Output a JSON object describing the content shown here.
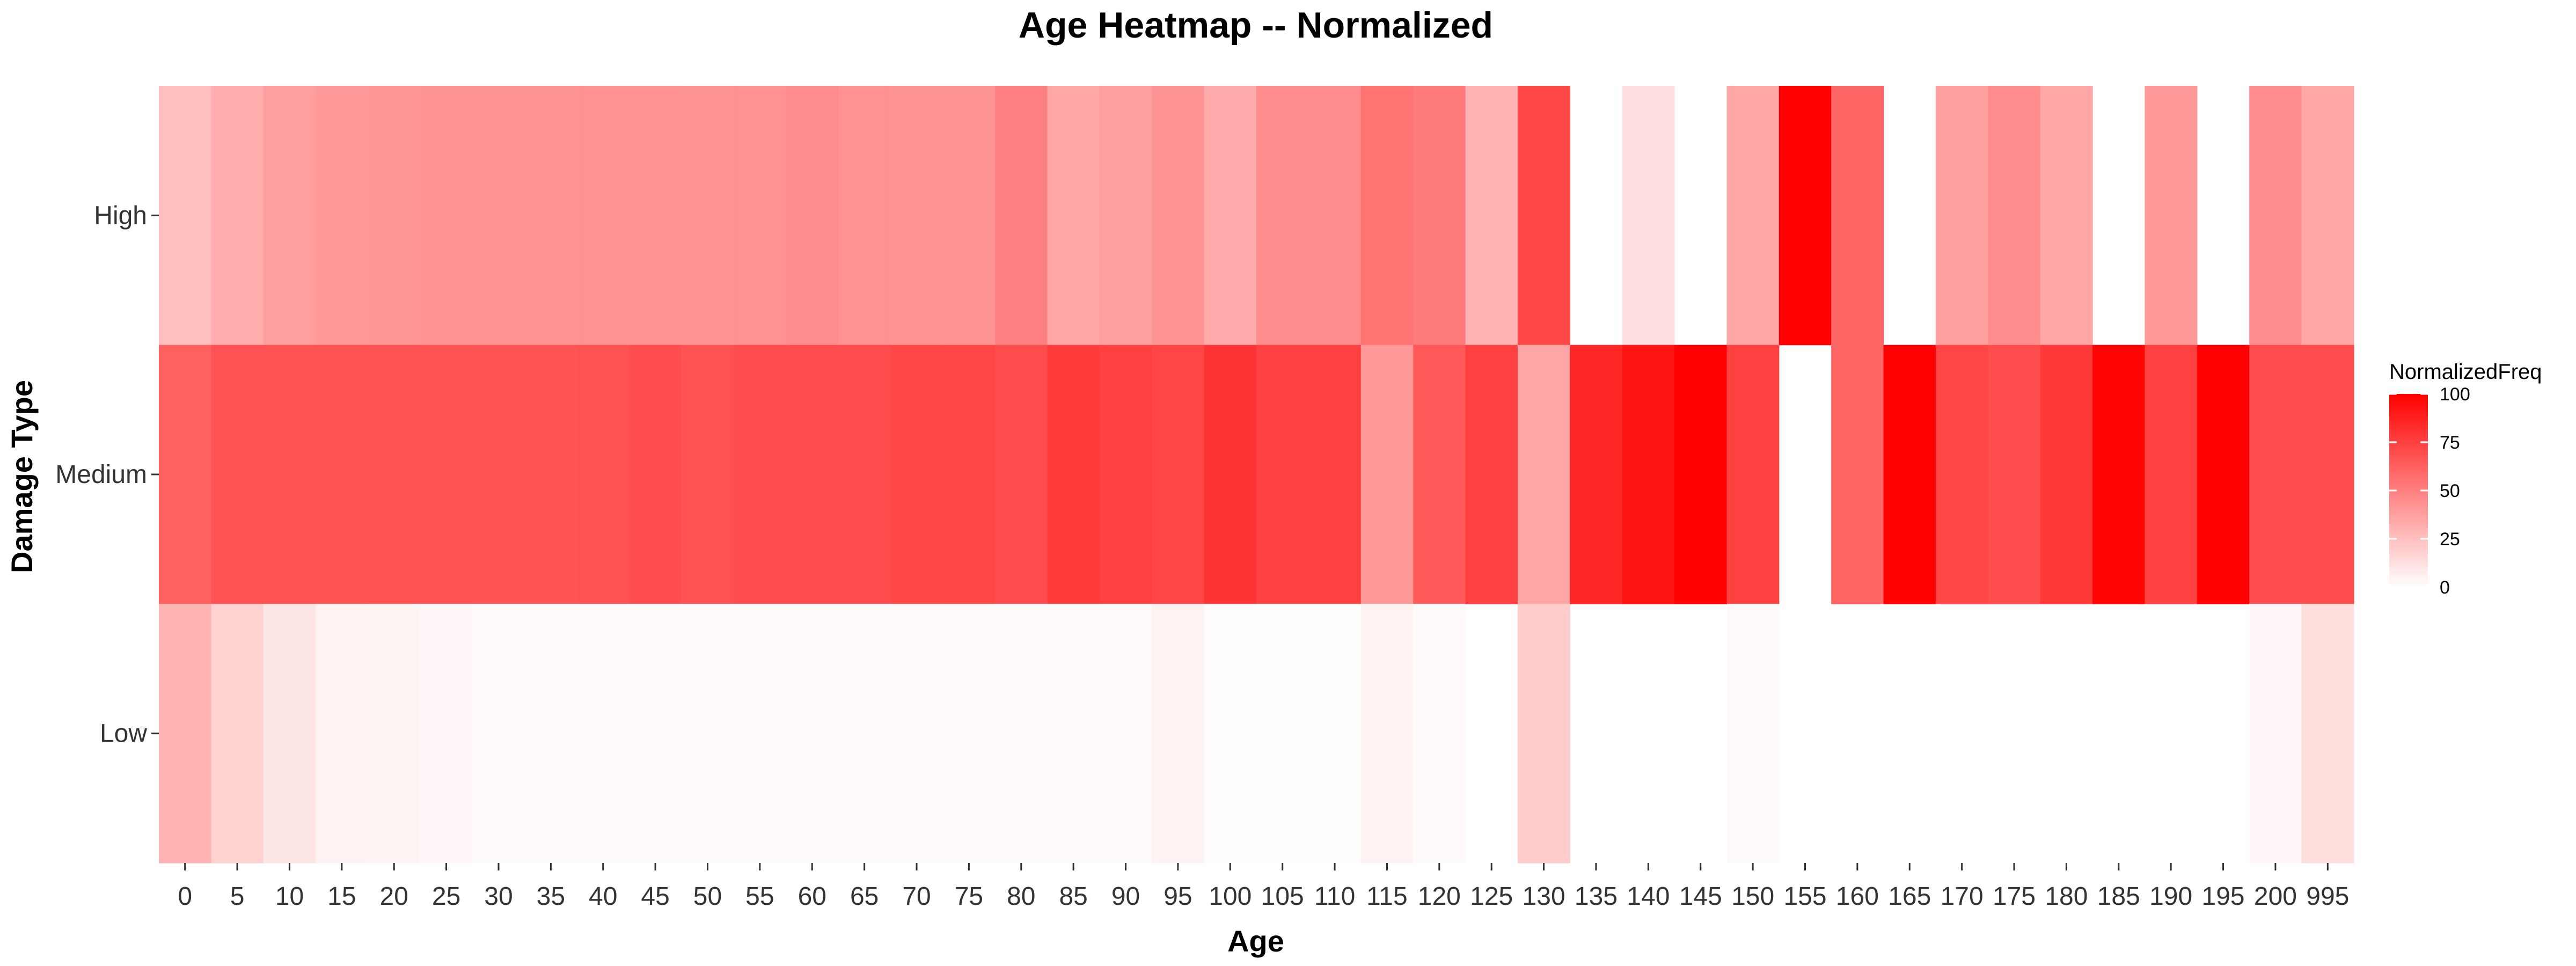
{
  "chart_data": {
    "type": "heatmap",
    "title": "Age Heatmap -- Normalized",
    "xlabel": "Age",
    "ylabel": "Damage Type",
    "x": [
      "0",
      "5",
      "10",
      "15",
      "20",
      "25",
      "30",
      "35",
      "40",
      "45",
      "50",
      "55",
      "60",
      "65",
      "70",
      "75",
      "80",
      "85",
      "90",
      "95",
      "100",
      "105",
      "110",
      "115",
      "120",
      "125",
      "130",
      "135",
      "140",
      "145",
      "150",
      "155",
      "160",
      "165",
      "170",
      "175",
      "180",
      "185",
      "190",
      "195",
      "200",
      "995"
    ],
    "y": [
      "High",
      "Medium",
      "Low"
    ],
    "values": [
      [
        25,
        32,
        38,
        40,
        41,
        42,
        42,
        42,
        43,
        43,
        42,
        43,
        45,
        43,
        42,
        42,
        50,
        35,
        38,
        42,
        33,
        45,
        45,
        55,
        52,
        30,
        72,
        null,
        12,
        null,
        35,
        100,
        60,
        null,
        38,
        45,
        35,
        null,
        40,
        null,
        45,
        35
      ],
      [
        62,
        68,
        68,
        68,
        68,
        68,
        67,
        67,
        68,
        70,
        68,
        70,
        70,
        70,
        72,
        72,
        70,
        77,
        75,
        73,
        80,
        75,
        75,
        40,
        65,
        75,
        35,
        85,
        92,
        100,
        75,
        null,
        60,
        100,
        73,
        70,
        78,
        98,
        75,
        100,
        70,
        70
      ],
      [
        30,
        18,
        10,
        5,
        4,
        3,
        2,
        2,
        2,
        2,
        2,
        2,
        2,
        2,
        2,
        2,
        2,
        2,
        2,
        5,
        1,
        1,
        1,
        5,
        2,
        null,
        20,
        null,
        null,
        null,
        2,
        null,
        null,
        null,
        null,
        null,
        null,
        null,
        null,
        null,
        3,
        13
      ]
    ],
    "value_range": [
      0,
      100
    ],
    "color_low": "#ffffff",
    "color_high": "#ff0000",
    "legend": {
      "title": "NormalizedFreq",
      "ticks": [
        "100",
        "75",
        "50",
        "25",
        "0"
      ],
      "position": "right"
    }
  }
}
